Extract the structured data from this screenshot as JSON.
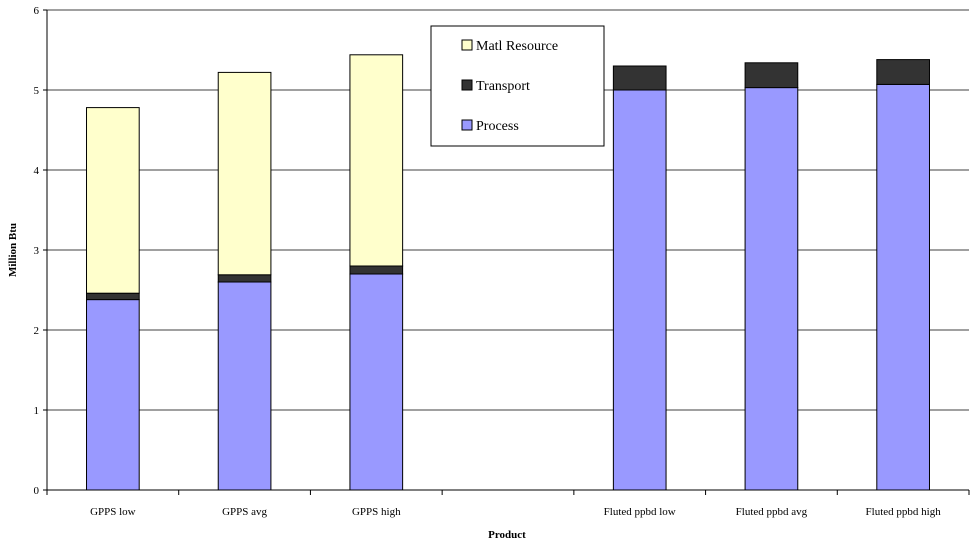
{
  "chart_data": {
    "type": "bar",
    "stacked": true,
    "categories": [
      "GPPS low",
      "GPPS avg",
      "GPPS high",
      "",
      "Fluted ppbd low",
      "Fluted ppbd avg",
      "Fluted ppbd high"
    ],
    "series": [
      {
        "name": "Process",
        "color": "#9999ff",
        "values": [
          2.38,
          2.6,
          2.7,
          0,
          5.0,
          5.03,
          5.07
        ]
      },
      {
        "name": "Transport",
        "color": "#333333",
        "values": [
          0.08,
          0.09,
          0.1,
          0,
          0.3,
          0.31,
          0.31
        ]
      },
      {
        "name": "Matl Resource",
        "color": "#ffffcc",
        "values": [
          2.32,
          2.53,
          2.64,
          0,
          0,
          0,
          0
        ]
      }
    ],
    "legend_order": [
      "Matl Resource",
      "Transport",
      "Process"
    ],
    "title": "",
    "xlabel": "Product",
    "ylabel": "Million Btu",
    "ylim": [
      0,
      6
    ],
    "yticks": [
      0,
      1,
      2,
      3,
      4,
      5,
      6
    ],
    "grid": true,
    "legend_position": "top-center"
  }
}
